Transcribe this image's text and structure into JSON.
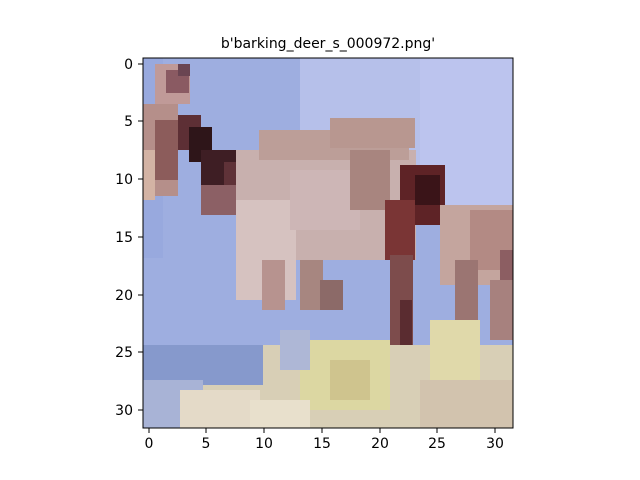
{
  "figure": {
    "title": "b'barking_deer_s_000972.png'",
    "xticks": [
      "0",
      "5",
      "10",
      "15",
      "20",
      "25",
      "30"
    ],
    "yticks": [
      "0",
      "5",
      "10",
      "15",
      "20",
      "25",
      "30"
    ],
    "image_grid": {
      "rows": 32,
      "cols": 32
    },
    "colors": {
      "sky": "#9eaee0",
      "sky_light": "#b4bfe8",
      "deer_light": "#cbb6b4",
      "deer_mid": "#b3958f",
      "deer_dark": "#5b2a2e",
      "deer_darkest": "#2c1419",
      "ground_light": "#e6dfc0",
      "ground_yellow": "#d8d49e",
      "ground_blue": "#8497c8"
    }
  }
}
